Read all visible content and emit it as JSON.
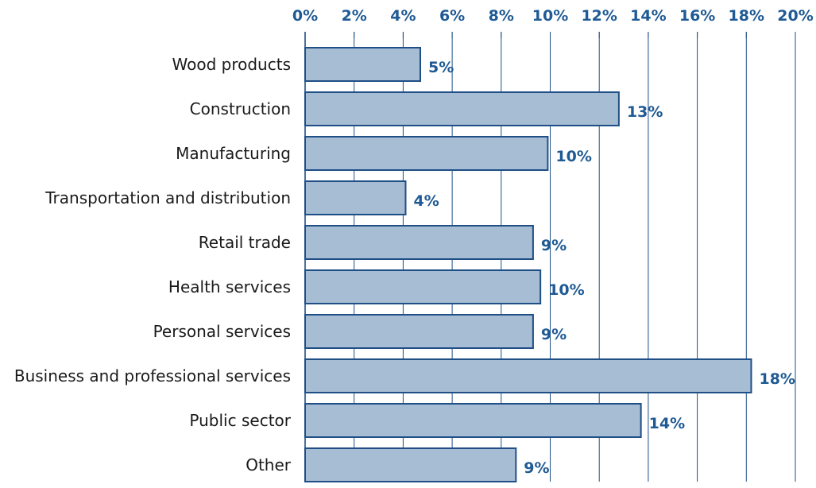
{
  "chart_data": {
    "type": "bar",
    "orientation": "horizontal",
    "title": "",
    "xlabel": "",
    "ylabel": "",
    "categories": [
      "Wood products",
      "Construction",
      "Manufacturing",
      "Transportation and distribution",
      "Retail trade",
      "Health services",
      "Personal services",
      "Business and professional services",
      "Public sector",
      "Other"
    ],
    "values": [
      4.7,
      12.8,
      9.9,
      4.1,
      9.3,
      9.6,
      9.3,
      18.2,
      13.7,
      8.6
    ],
    "data_labels": [
      "5%",
      "13%",
      "10%",
      "4%",
      "9%",
      "10%",
      "9%",
      "18%",
      "14%",
      "9%"
    ],
    "xlim": [
      0,
      20
    ],
    "x_ticks": [
      "0%",
      "2%",
      "4%",
      "6%",
      "8%",
      "10%",
      "12%",
      "14%",
      "16%",
      "18%",
      "20%"
    ],
    "x_tick_values": [
      0,
      2,
      4,
      6,
      8,
      10,
      12,
      14,
      16,
      18,
      20
    ],
    "axis_position": "top",
    "grid": true,
    "legend": "none",
    "colors": {
      "bar_fill": "#a7bdd4",
      "bar_stroke": "#1f4f86",
      "gridline": "#1f4f86",
      "accent_text": "#1f5a94",
      "category_text": "#1a1a1a"
    }
  }
}
